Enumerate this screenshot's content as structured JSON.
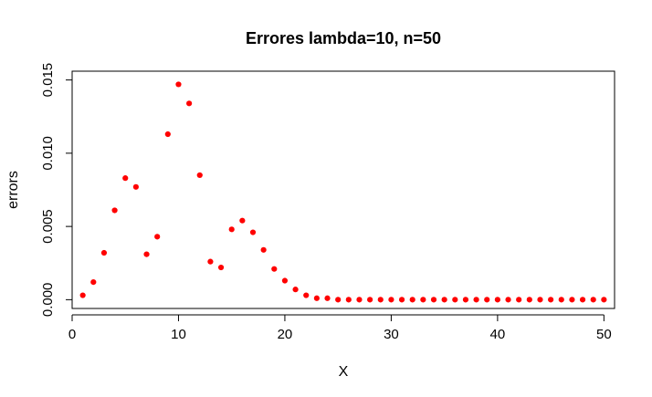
{
  "chart_data": {
    "type": "scatter",
    "title": "Errores lambda=10, n=50",
    "xlabel": "X",
    "ylabel": "errors",
    "xlim": [
      0,
      51
    ],
    "ylim": [
      -0.0006,
      0.0156
    ],
    "xticks": [
      0,
      10,
      20,
      30,
      40,
      50
    ],
    "xtick_labels": [
      "0",
      "10",
      "20",
      "30",
      "40",
      "50"
    ],
    "yticks": [
      0.0,
      0.005,
      0.01,
      0.015
    ],
    "ytick_labels": [
      "0.000",
      "0.005",
      "0.010",
      "0.015"
    ],
    "grid": false,
    "legend": "none",
    "point_color": "#ff0000",
    "series": [
      {
        "x": [
          1,
          2,
          3,
          4,
          5,
          6,
          7,
          8,
          9,
          10,
          11,
          12,
          13,
          14,
          15,
          16,
          17,
          18,
          19,
          20,
          21,
          22,
          23,
          24,
          25,
          26,
          27,
          28,
          29,
          30,
          31,
          32,
          33,
          34,
          35,
          36,
          37,
          38,
          39,
          40,
          41,
          42,
          43,
          44,
          45,
          46,
          47,
          48,
          49,
          50
        ],
        "y": [
          0.0003,
          0.0012,
          0.0032,
          0.0061,
          0.0083,
          0.0077,
          0.0031,
          0.0043,
          0.0113,
          0.0147,
          0.0134,
          0.0085,
          0.0026,
          0.0022,
          0.0048,
          0.0054,
          0.0046,
          0.0034,
          0.0021,
          0.0013,
          0.0007,
          0.0003,
          0.0001,
          0.0001,
          0.0,
          0.0,
          0.0,
          0.0,
          0.0,
          0.0,
          0.0,
          0.0,
          0.0,
          0.0,
          0.0,
          0.0,
          0.0,
          0.0,
          0.0,
          0.0,
          0.0,
          0.0,
          0.0,
          0.0,
          0.0,
          0.0,
          0.0,
          0.0,
          0.0,
          0.0
        ]
      }
    ]
  }
}
